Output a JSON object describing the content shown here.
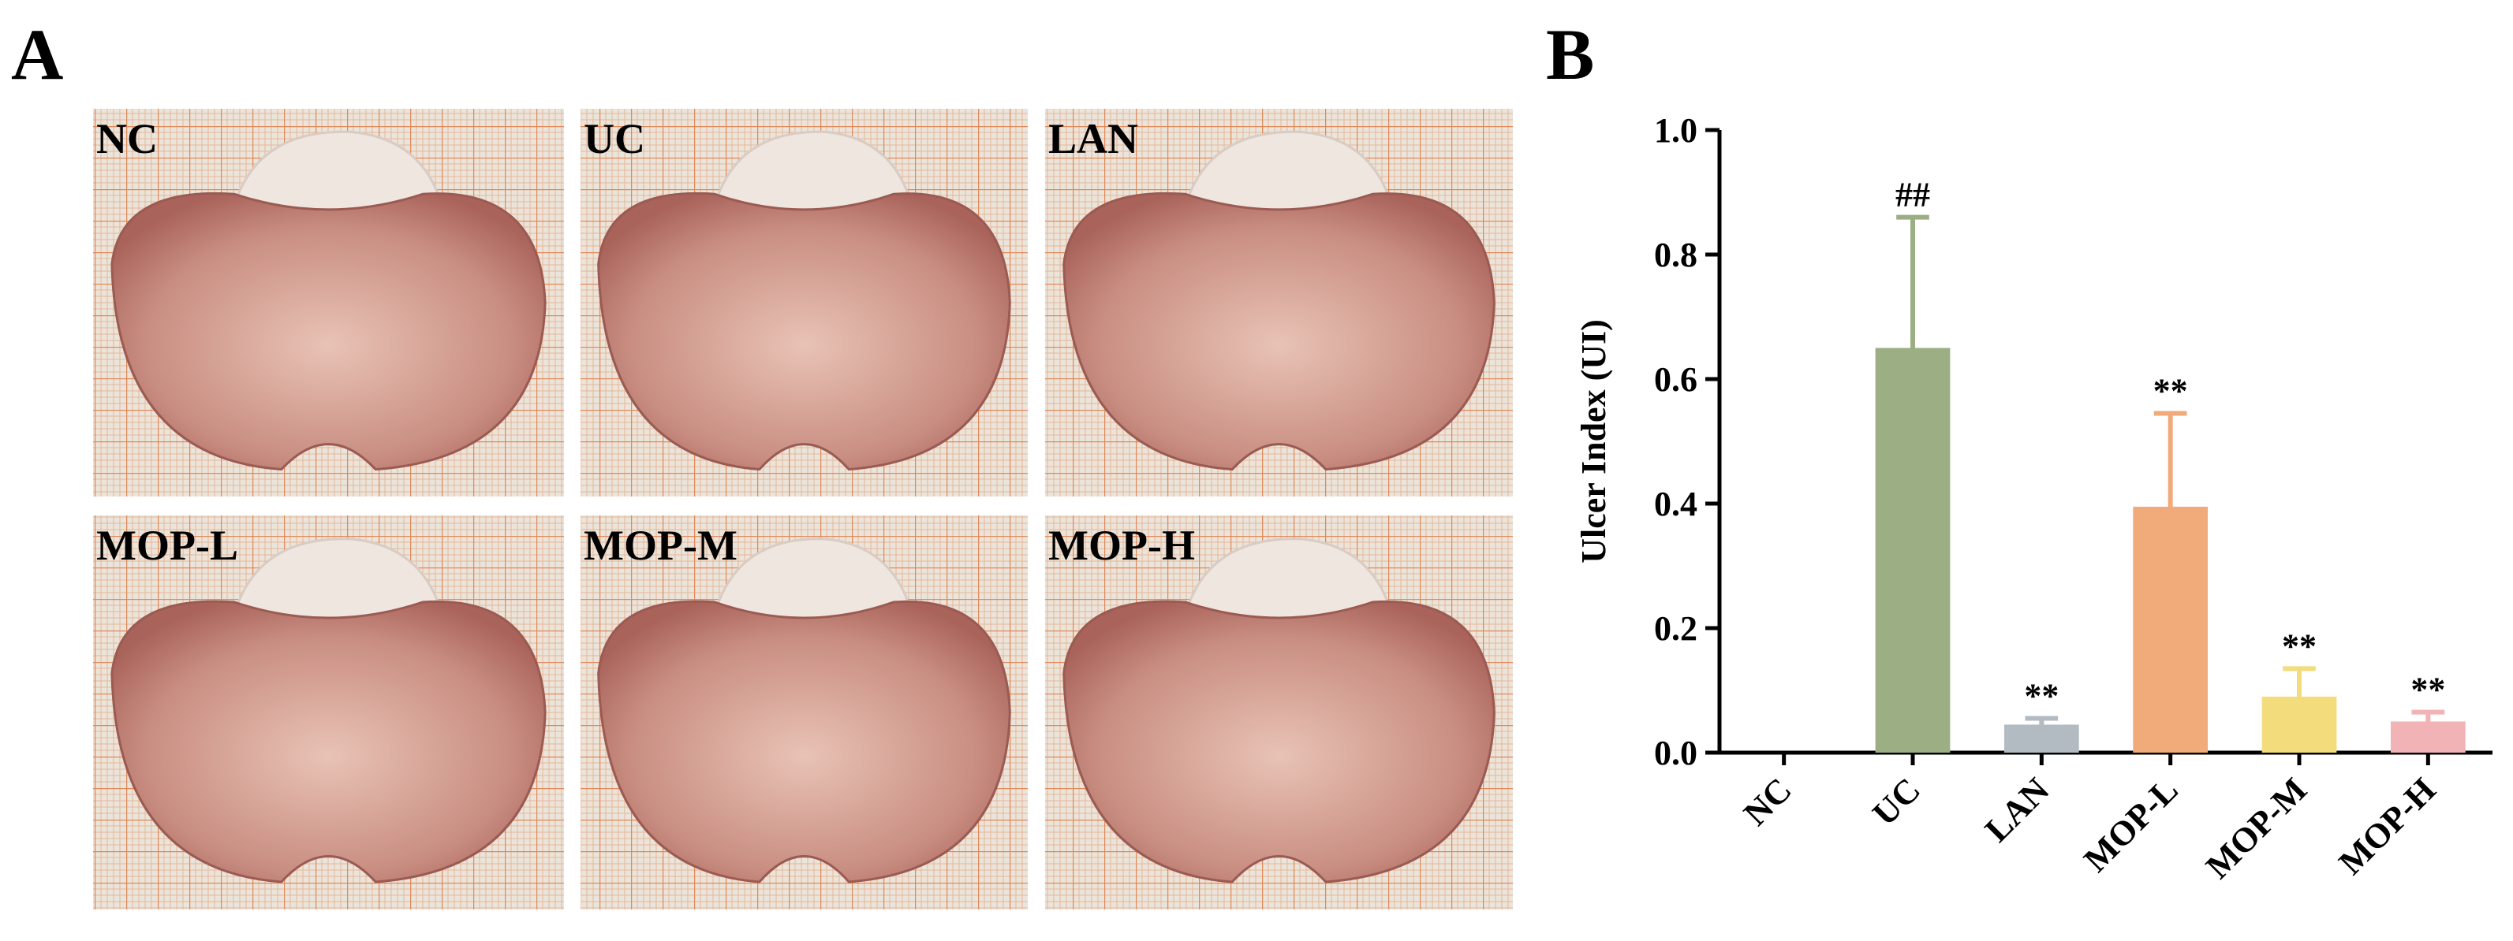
{
  "panel_a": {
    "label": "A",
    "images": [
      "NC",
      "UC",
      "LAN",
      "MOP-L",
      "MOP-M",
      "MOP-H"
    ]
  },
  "chart_data": {
    "type": "bar",
    "panel_label": "B",
    "y_label": "Ulcer Index (UI)",
    "categories": [
      "NC",
      "UC",
      "LAN",
      "MOP-L",
      "MOP-M",
      "MOP-H"
    ],
    "values": [
      0,
      0.65,
      0.045,
      0.395,
      0.09,
      0.05
    ],
    "errors": [
      0,
      0.21,
      0.01,
      0.15,
      0.045,
      0.015
    ],
    "annotations": [
      null,
      "##",
      "**",
      "**",
      "**",
      "**"
    ],
    "colors": [
      "#9caf84",
      "#9caf84",
      "#b3bbc2",
      "#f1aa79",
      "#f2dc7c",
      "#f1b3b6"
    ],
    "ylim": [
      0,
      1.0
    ],
    "yticks": [
      {
        "value": 0,
        "label": "0.0"
      },
      {
        "value": 0.2,
        "label": "0.2"
      },
      {
        "value": 0.4,
        "label": "0.4"
      },
      {
        "value": 0.6,
        "label": "0.6"
      },
      {
        "value": 0.8,
        "label": "0.8"
      },
      {
        "value": 1.0,
        "label": "1.0"
      }
    ]
  }
}
